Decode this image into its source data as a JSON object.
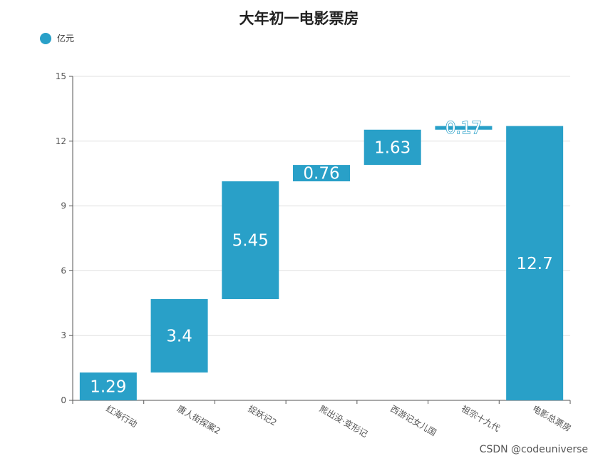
{
  "title": "大年初一电影票房",
  "watermark": "CSDN @codeuniverse",
  "colors": {
    "bar": "#29a0c8",
    "axis": "#555555",
    "grid": "#e0e0e0",
    "tick_text": "#555555",
    "label_text": "#ffffff"
  },
  "chart_data": {
    "type": "bar",
    "subtype": "waterfall",
    "title": "大年初一电影票房",
    "legend": {
      "entries": [
        "亿元"
      ],
      "position": "top-left"
    },
    "categories": [
      "红海行动",
      "唐人街探案2",
      "捉妖记2",
      "熊出没·变形记",
      "西游记女儿国",
      "祖宗十九代",
      "电影总票房"
    ],
    "values": [
      1.29,
      3.4,
      5.45,
      0.76,
      1.63,
      0.17,
      12.7
    ],
    "bases": [
      0,
      1.29,
      4.69,
      10.14,
      10.9,
      12.53,
      0
    ],
    "data_labels": [
      "1.29",
      "3.4",
      "5.45",
      "0.76",
      "1.63",
      "0.17",
      "12.7"
    ],
    "ylim": [
      0,
      15
    ],
    "yticks": [
      "0",
      "3",
      "6",
      "9",
      "12",
      "15"
    ],
    "ytick_values": [
      0,
      3,
      6,
      9,
      12,
      15
    ],
    "grid": true,
    "xlabel": "",
    "ylabel": ""
  }
}
